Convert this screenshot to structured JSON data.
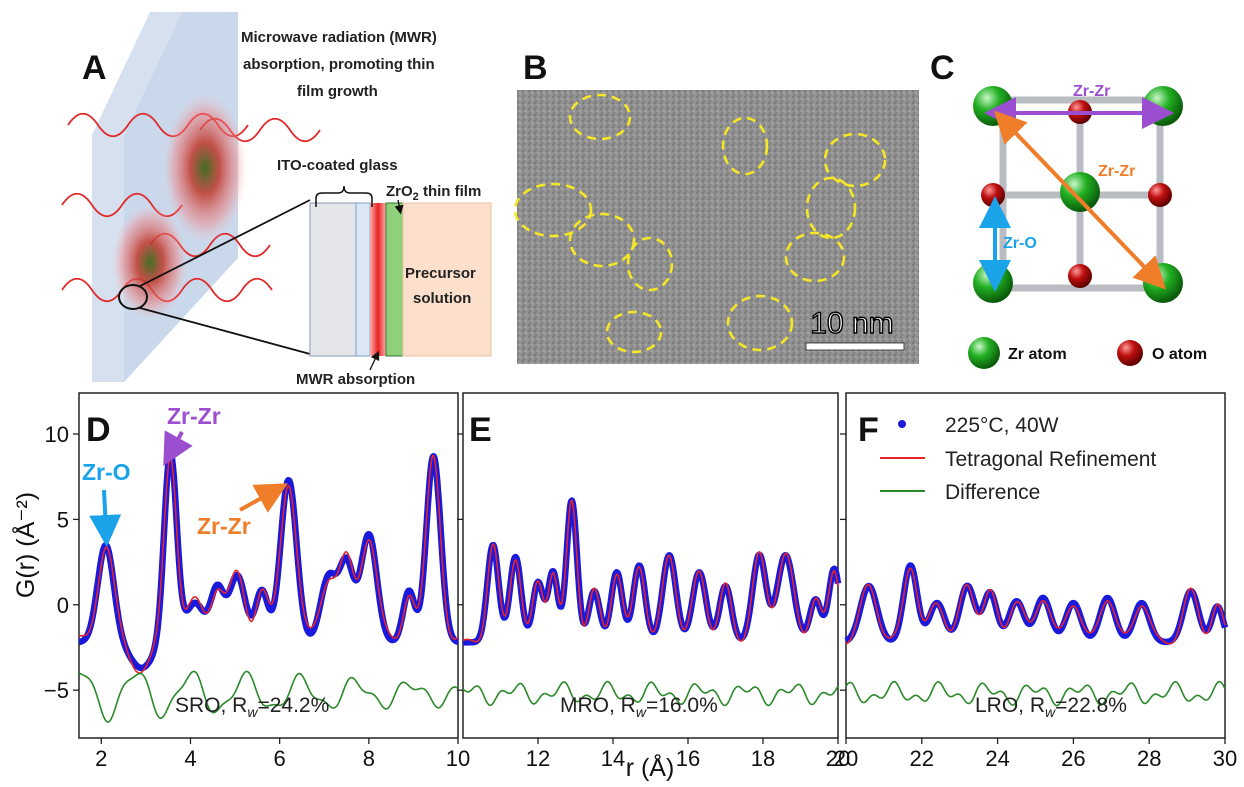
{
  "panel_a": {
    "label": "A",
    "mwr_title_1": "Microwave radiation (MWR)",
    "mwr_title_2": "absorption, promoting thin",
    "mwr_title_3": "film growth",
    "ito_label": "ITO-coated glass",
    "film_label_prefix": "ZrO",
    "film_label_sub": "2",
    "film_label_suffix": " thin film",
    "precursor_1": "Precursor",
    "precursor_2": "solution",
    "absorption_label": "MWR absorption"
  },
  "panel_b": {
    "label": "B",
    "scale_bar": "10 nm"
  },
  "panel_c": {
    "label": "C",
    "zrzr_top": "Zr-Zr",
    "zrzr_diag": "Zr-Zr",
    "zro": "Zr-O",
    "legend_zr": "Zr atom",
    "legend_o": "O atom"
  },
  "colors": {
    "data_blue": "#1a1adc",
    "fit_red": "#e8232a",
    "diff_green": "#2a8a2a",
    "zr_green": "#22b022",
    "o_red": "#c01010",
    "purple": "#9b4fd0",
    "orange": "#ef7d2a",
    "cyan": "#1aa3e8"
  },
  "chart_data": {
    "type": "line",
    "ylabel": "G(r) (Å⁻²)",
    "xlabel": "r (Å)",
    "ylim": [
      -7.8,
      12.4
    ],
    "yticks": [
      "−5",
      "0",
      "5",
      "10"
    ],
    "legend": {
      "placement": "top-right",
      "entries": [
        "225°C, 40W",
        "Tetragonal Refinement",
        "Difference"
      ]
    },
    "panels": [
      {
        "label": "D",
        "xlim": [
          1.5,
          10
        ],
        "xticks": [
          "2",
          "4",
          "6",
          "8",
          "10"
        ],
        "fit_prefix": "SRO, R",
        "fit_sub": "w",
        "fit_value": "=24.2%",
        "annotations": [
          "Zr-O",
          "Zr-Zr",
          "Zr-Zr"
        ],
        "peaks": [
          {
            "r": 2.1,
            "g": 4.2,
            "w": 0.18
          },
          {
            "r": 3.55,
            "g": 9.6,
            "w": 0.14
          },
          {
            "r": 4.1,
            "g": 0.8,
            "w": 0.2
          },
          {
            "r": 4.6,
            "g": 1.6,
            "w": 0.15
          },
          {
            "r": 5.05,
            "g": 2.4,
            "w": 0.18
          },
          {
            "r": 5.6,
            "g": 1.5,
            "w": 0.14
          },
          {
            "r": 6.2,
            "g": 8.0,
            "w": 0.18
          },
          {
            "r": 7.1,
            "g": 2.3,
            "w": 0.18
          },
          {
            "r": 7.5,
            "g": 3.0,
            "w": 0.16
          },
          {
            "r": 8.0,
            "g": 4.8,
            "w": 0.18
          },
          {
            "r": 8.9,
            "g": 1.5,
            "w": 0.13
          },
          {
            "r": 9.45,
            "g": 9.4,
            "w": 0.16
          }
        ]
      },
      {
        "label": "E",
        "xlim": [
          10,
          20
        ],
        "xticks": [
          "12",
          "14",
          "16",
          "18",
          "20"
        ],
        "fit_prefix": "MRO, R",
        "fit_sub": "w",
        "fit_value": "=16.0%",
        "peaks": [
          {
            "r": 10.8,
            "g": 4.2,
            "w": 0.15
          },
          {
            "r": 11.4,
            "g": 3.5,
            "w": 0.15
          },
          {
            "r": 12.0,
            "g": 2.0,
            "w": 0.14
          },
          {
            "r": 12.4,
            "g": 2.6,
            "w": 0.13
          },
          {
            "r": 12.9,
            "g": 6.8,
            "w": 0.14
          },
          {
            "r": 13.5,
            "g": 1.5,
            "w": 0.15
          },
          {
            "r": 14.1,
            "g": 2.6,
            "w": 0.15
          },
          {
            "r": 14.7,
            "g": 3.0,
            "w": 0.16
          },
          {
            "r": 15.5,
            "g": 3.6,
            "w": 0.18
          },
          {
            "r": 16.3,
            "g": 2.6,
            "w": 0.18
          },
          {
            "r": 17.0,
            "g": 1.8,
            "w": 0.16
          },
          {
            "r": 17.9,
            "g": 3.6,
            "w": 0.18
          },
          {
            "r": 18.6,
            "g": 3.6,
            "w": 0.22
          },
          {
            "r": 19.4,
            "g": 1.0,
            "w": 0.15
          },
          {
            "r": 19.9,
            "g": 2.8,
            "w": 0.15
          }
        ]
      },
      {
        "label": "F",
        "xlim": [
          20,
          30
        ],
        "xticks": [
          "20",
          "22",
          "24",
          "26",
          "28",
          "30"
        ],
        "fit_prefix": "LRO, R",
        "fit_sub": "w",
        "fit_value": "=22.8%",
        "peaks": [
          {
            "r": 20.6,
            "g": 1.8,
            "w": 0.22
          },
          {
            "r": 21.7,
            "g": 3.0,
            "w": 0.18
          },
          {
            "r": 22.4,
            "g": 0.8,
            "w": 0.2
          },
          {
            "r": 23.2,
            "g": 1.8,
            "w": 0.2
          },
          {
            "r": 23.8,
            "g": 1.4,
            "w": 0.18
          },
          {
            "r": 24.5,
            "g": 0.9,
            "w": 0.2
          },
          {
            "r": 25.2,
            "g": 1.1,
            "w": 0.2
          },
          {
            "r": 26.0,
            "g": 0.8,
            "w": 0.2
          },
          {
            "r": 26.9,
            "g": 1.1,
            "w": 0.2
          },
          {
            "r": 27.8,
            "g": 0.8,
            "w": 0.2
          },
          {
            "r": 29.1,
            "g": 1.5,
            "w": 0.2
          },
          {
            "r": 29.8,
            "g": 0.6,
            "w": 0.15
          }
        ]
      }
    ]
  }
}
